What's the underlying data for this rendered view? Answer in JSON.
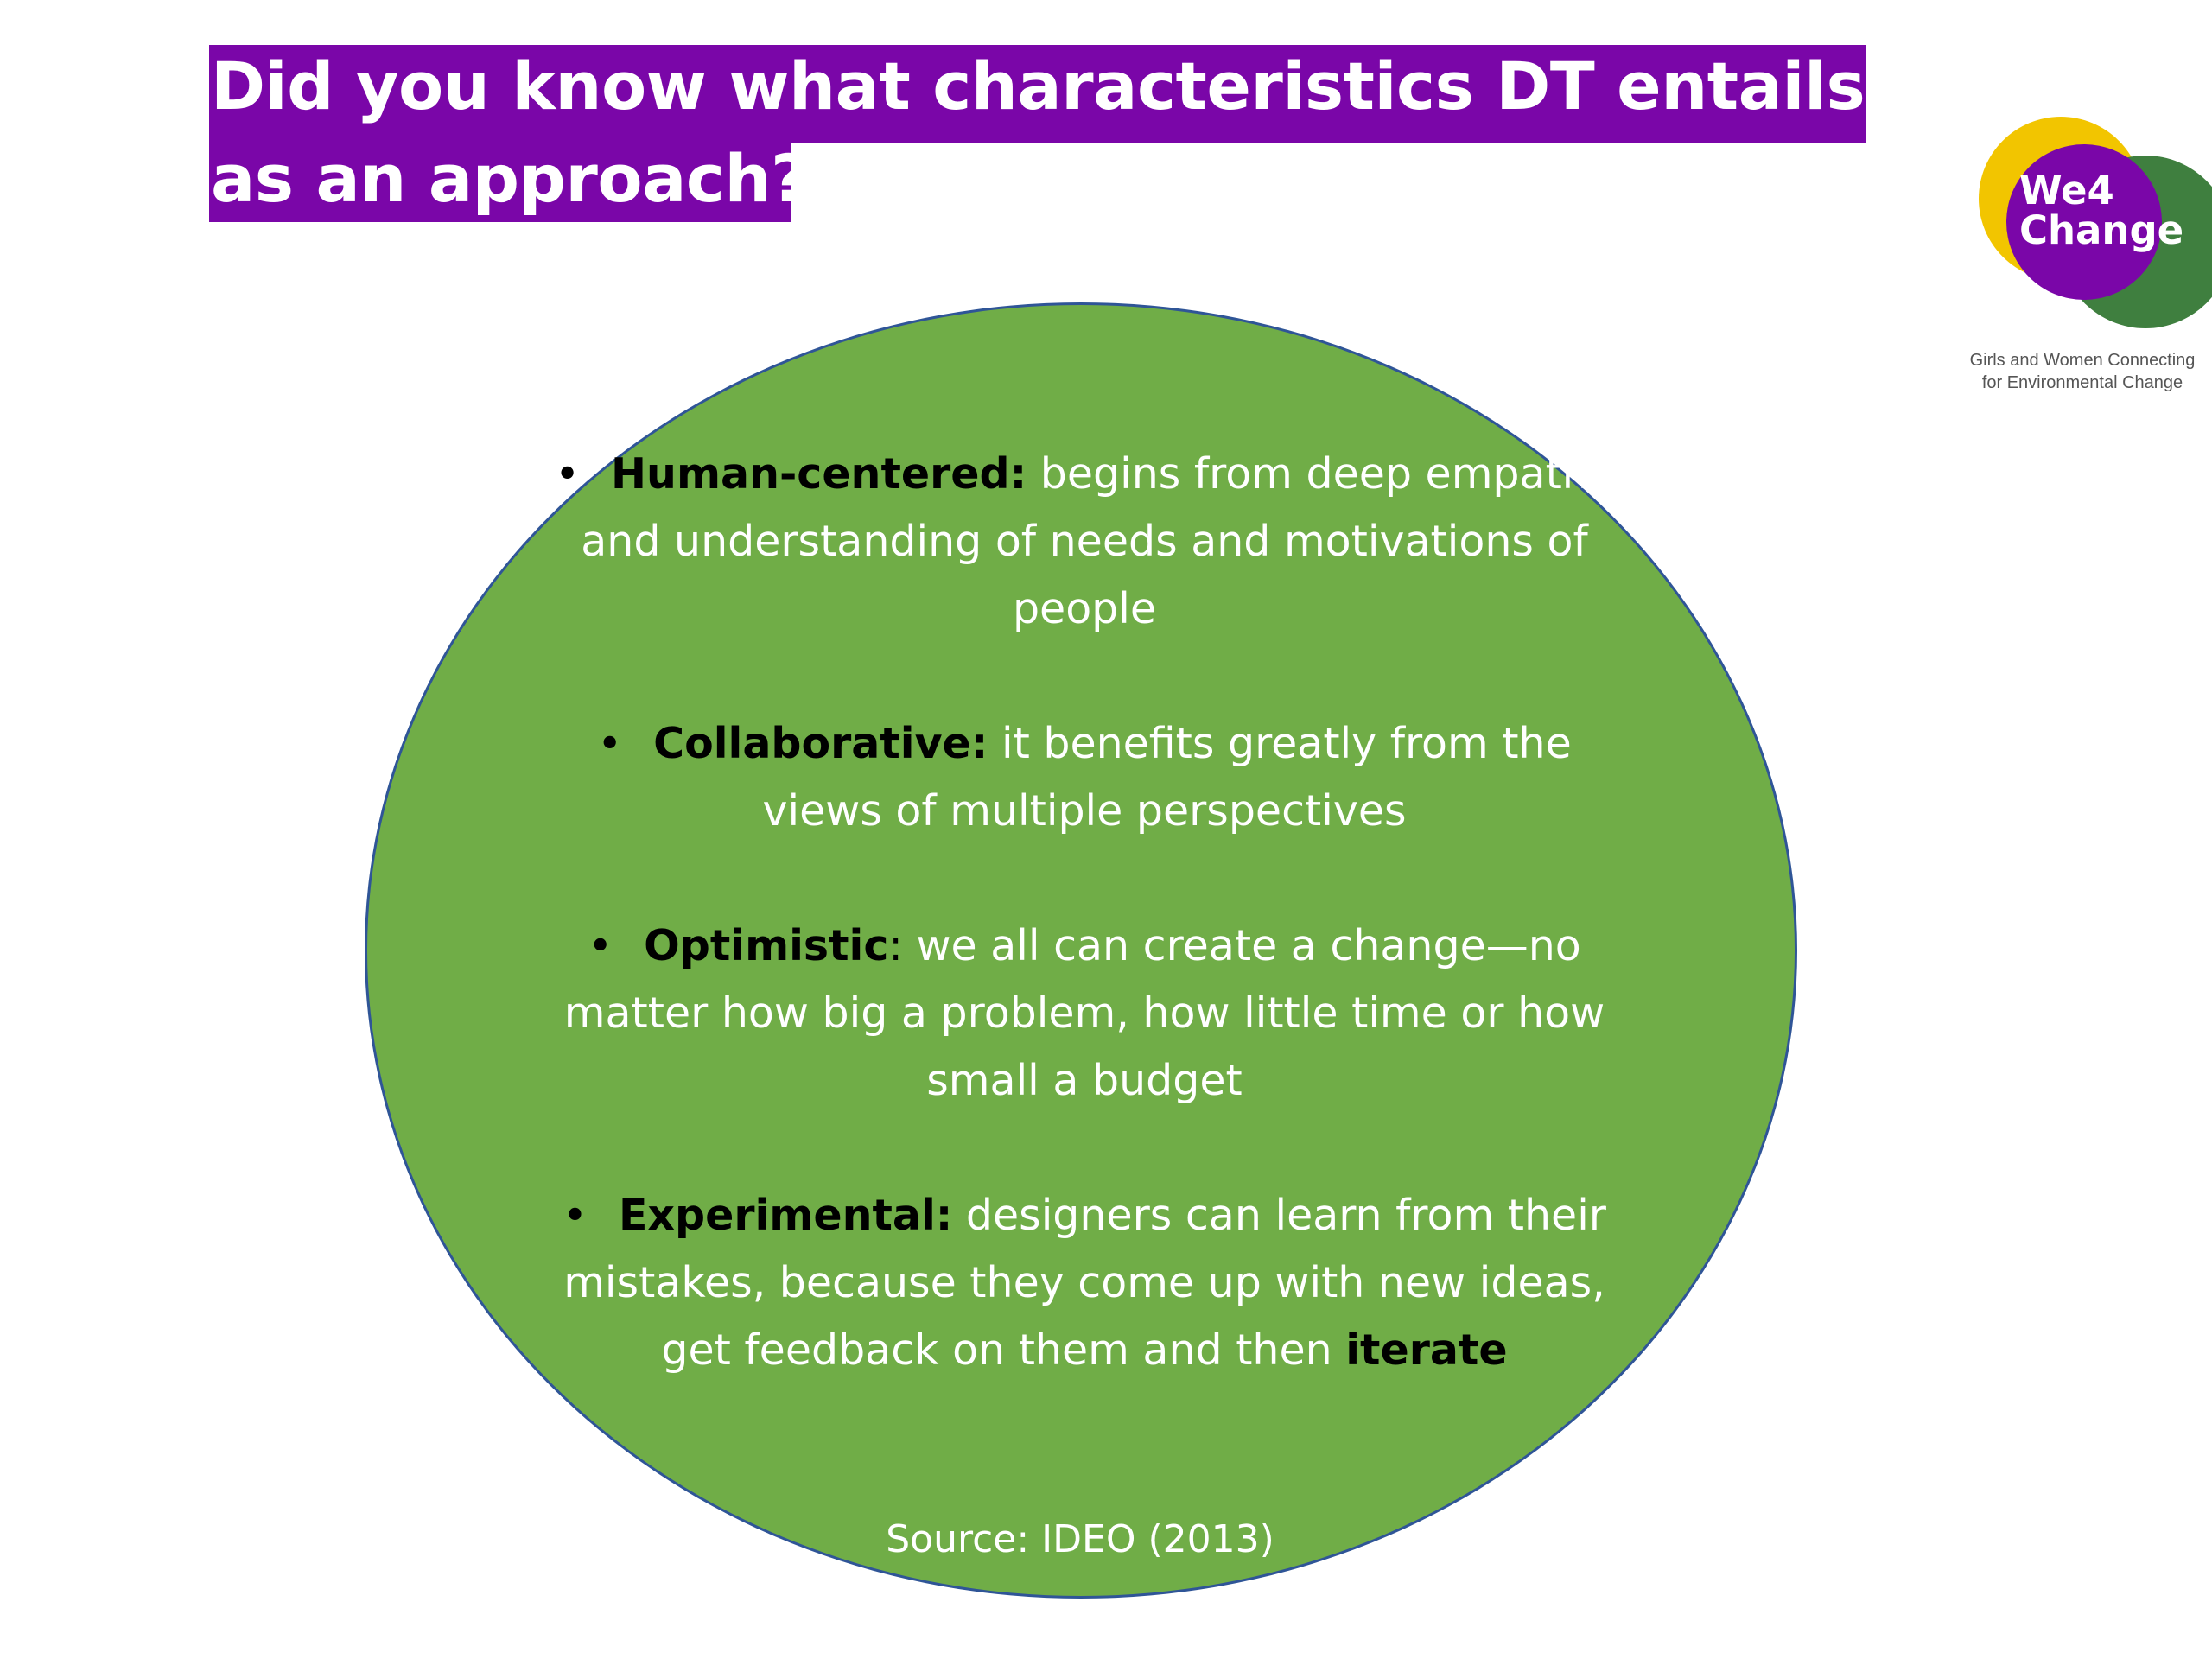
{
  "title": {
    "line1": "Did you know what characteristics DT entails",
    "line2": "as an approach?"
  },
  "logo": {
    "word_line1": "We4",
    "word_line2": "Change",
    "tagline_line1": "Girls and Women Connecting",
    "tagline_line2": "for Environmental Change",
    "colors": {
      "yellow": "#f2c500",
      "green": "#3f7f3f",
      "purple": "#7a06a8"
    }
  },
  "bullet_symbol": "•",
  "characteristics": [
    {
      "term": "Human-centered:",
      "text": " begins from deep empathy and understanding of needs and motivations of people"
    },
    {
      "term": "Collaborative:",
      "text": " it benefits greatly from the views of multiple perspectives"
    },
    {
      "term": "Optimistic",
      "colon": ":",
      "text": " we all can create a change—no matter how big a problem, how little time or how small a budget"
    },
    {
      "term": "Experimental:",
      "text": " designers can learn from their mistakes, because they come up with new ideas, get feedback on them and then ",
      "emphasis": "iterate"
    }
  ],
  "source": "Source: IDEO (2013)",
  "colors": {
    "ellipse_fill": "#70ad47",
    "ellipse_border": "#2f5597",
    "title_bg": "#7a06a8"
  }
}
